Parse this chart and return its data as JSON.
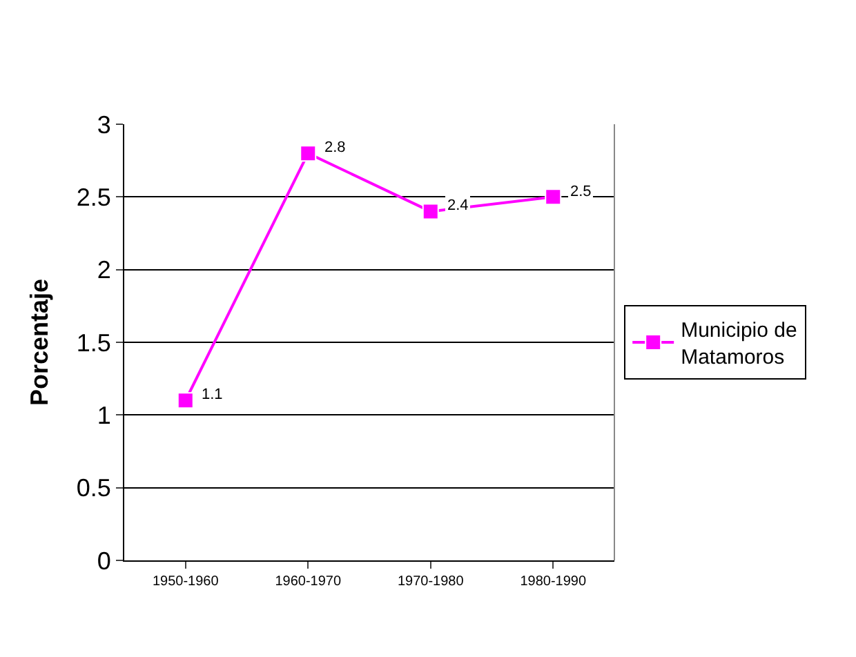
{
  "chart_data": {
    "type": "line",
    "ylabel": "Porcentaje",
    "categories": [
      "1950-1960",
      "1960-1970",
      "1970-1980",
      "1980-1990"
    ],
    "series": [
      {
        "name": "Municipio de Matamoros",
        "color": "#ff00ff",
        "values": [
          1.1,
          2.8,
          2.4,
          2.5
        ]
      }
    ],
    "ylim": [
      0,
      3
    ],
    "yticks": [
      0,
      0.5,
      1,
      1.5,
      2,
      2.5,
      3
    ],
    "grid": "y",
    "legend": "right",
    "marker": "square",
    "line_style": "solid",
    "data_labels": true
  }
}
